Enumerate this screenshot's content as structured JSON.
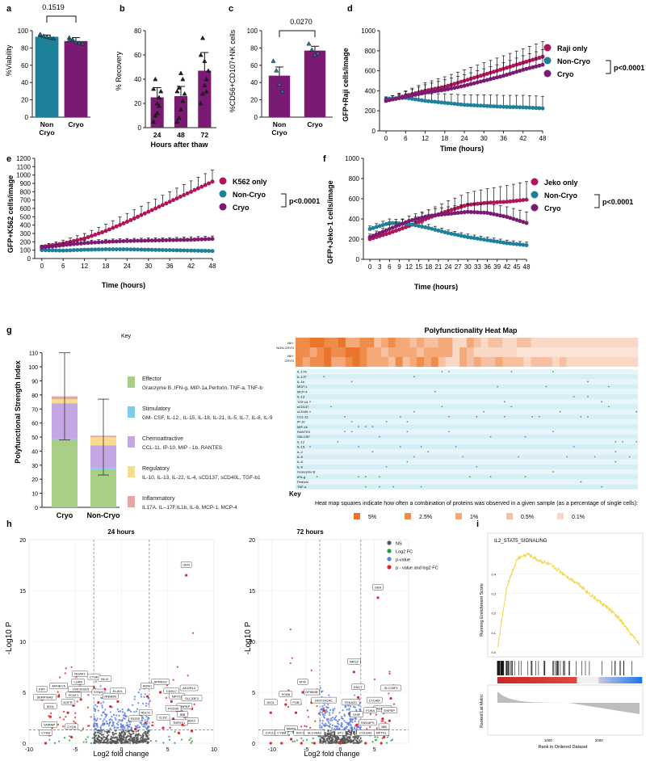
{
  "colors": {
    "teal": "#1f8199",
    "purple": "#7b1a72",
    "magenta": "#b0145a",
    "effector": "#a8cf85",
    "stimulatory": "#7fcde4",
    "chemo": "#c4a6e2",
    "regulatory": "#f6dc8f",
    "inflammatory": "#e8a7a7",
    "heat1": "#e9742a",
    "heat2": "#f08c4a",
    "heat3": "#f5a878",
    "heat4": "#f7c0a0",
    "heat5": "#fad8c6",
    "ns": "#555555",
    "logfc": "#2b9a3c",
    "pval": "#5b7be8",
    "both": "#e0262a",
    "gsea": "#f3d547"
  },
  "panels": {
    "a": "a",
    "b": "b",
    "c": "c",
    "d": "d",
    "e": "e",
    "f": "f",
    "g": "g",
    "h": "h",
    "i": "i"
  },
  "chart_data": [
    {
      "id": "a",
      "type": "bar",
      "ylabel": "%Viability",
      "ylim": [
        0,
        100
      ],
      "yticks": [
        "0",
        "20",
        "40",
        "60",
        "80",
        "100"
      ],
      "categories": [
        "Non Cryo",
        "Cryo"
      ],
      "category_lines": [
        [
          "Non",
          "Cryo"
        ],
        [
          "Cryo"
        ]
      ],
      "values": [
        93,
        88
      ],
      "errors": [
        2,
        4
      ],
      "points": [
        [
          95,
          94,
          93,
          92,
          91,
          96
        ],
        [
          92,
          90,
          87,
          86,
          85,
          89
        ]
      ],
      "pvalue": "0.1519"
    },
    {
      "id": "b",
      "type": "bar",
      "ylabel": "% Recovery",
      "xlabel": "Hours after thaw",
      "ylim": [
        0,
        80
      ],
      "yticks": [
        "0",
        "20",
        "40",
        "60",
        "80"
      ],
      "categories": [
        "24",
        "48",
        "72"
      ],
      "values": [
        25,
        26,
        47
      ],
      "errors": [
        8,
        8,
        15
      ],
      "points": [
        [
          5,
          10,
          20,
          25,
          30,
          32,
          40,
          12,
          18
        ],
        [
          5,
          8,
          15,
          22,
          28,
          30,
          33,
          45,
          40
        ],
        [
          20,
          28,
          35,
          40,
          47,
          60,
          74,
          55,
          30
        ]
      ]
    },
    {
      "id": "c",
      "type": "bar",
      "ylabel": "%CD56+CD107+NK cells",
      "ylim": [
        0,
        100
      ],
      "yticks": [
        "0",
        "20",
        "40",
        "60",
        "80",
        "100"
      ],
      "categories": [
        "Non Cryo",
        "Cryo"
      ],
      "category_lines": [
        [
          "Non",
          "Cryo"
        ],
        [
          "Cryo"
        ]
      ],
      "values": [
        48,
        77
      ],
      "errors": [
        10,
        5
      ],
      "points": [
        [
          65,
          54,
          38,
          30
        ],
        [
          85,
          78,
          72,
          74
        ]
      ],
      "pvalue": "0.0270"
    },
    {
      "id": "d",
      "type": "line",
      "ylabel": "GFP+Raji cells/image",
      "xlabel": "Time (hours)",
      "ylim": [
        0,
        1000
      ],
      "xlim": [
        -2,
        48
      ],
      "yticks": [
        "0",
        "200",
        "400",
        "600",
        "800",
        "1000"
      ],
      "xticks": [
        "0",
        "6",
        "12",
        "18",
        "24",
        "30",
        "36",
        "42",
        "48"
      ],
      "series": [
        {
          "name": "Raji only",
          "x": [
            0,
            6,
            12,
            18,
            24,
            30,
            36,
            42,
            48
          ],
          "values": [
            300,
            350,
            400,
            440,
            500,
            560,
            620,
            680,
            740
          ],
          "error": [
            30,
            50,
            80,
            100,
            110,
            120,
            130,
            140,
            150
          ]
        },
        {
          "name": "Non-Cryo",
          "x": [
            0,
            6,
            12,
            18,
            24,
            30,
            36,
            42,
            48
          ],
          "values": [
            320,
            330,
            300,
            280,
            260,
            250,
            240,
            235,
            225
          ],
          "error": [
            20,
            40,
            70,
            90,
            100,
            110,
            115,
            120,
            120
          ]
        },
        {
          "name": "Cryo",
          "x": [
            0,
            6,
            12,
            18,
            24,
            30,
            36,
            42,
            48
          ],
          "values": [
            300,
            340,
            380,
            410,
            450,
            500,
            550,
            610,
            660
          ],
          "error": [
            30,
            50,
            80,
            100,
            110,
            120,
            130,
            140,
            150
          ]
        }
      ],
      "pvalue": "p<0.0001"
    },
    {
      "id": "e",
      "type": "line",
      "ylabel": "GFP+K562 cells/image",
      "xlabel": "Time (hours)",
      "ylim": [
        0,
        1200
      ],
      "xlim": [
        -2,
        48
      ],
      "yticks": [
        "0",
        "100",
        "200",
        "300",
        "400",
        "500",
        "600",
        "700",
        "800",
        "900",
        "1000",
        "1100",
        "1200"
      ],
      "xticks": [
        "0",
        "6",
        "12",
        "18",
        "24",
        "30",
        "36",
        "42",
        "48"
      ],
      "series": [
        {
          "name": "K562 only",
          "x": [
            0,
            6,
            12,
            18,
            24,
            30,
            36,
            42,
            48
          ],
          "values": [
            140,
            180,
            240,
            330,
            440,
            560,
            680,
            800,
            920
          ],
          "error": [
            20,
            40,
            60,
            80,
            100,
            110,
            120,
            130,
            140
          ]
        },
        {
          "name": "Non-Cryo",
          "x": [
            0,
            6,
            12,
            18,
            24,
            30,
            36,
            42,
            48
          ],
          "values": [
            100,
            95,
            105,
            110,
            110,
            105,
            100,
            95,
            90
          ],
          "error": [
            10,
            10,
            15,
            15,
            15,
            15,
            15,
            15,
            15
          ]
        },
        {
          "name": "Cryo",
          "x": [
            0,
            6,
            12,
            18,
            24,
            30,
            36,
            42,
            48
          ],
          "values": [
            130,
            160,
            185,
            200,
            210,
            215,
            220,
            225,
            235
          ],
          "error": [
            20,
            25,
            30,
            30,
            30,
            30,
            30,
            35,
            35
          ]
        }
      ],
      "pvalue": "p<0.0001"
    },
    {
      "id": "f",
      "type": "line",
      "ylabel": "GFP+Jeko-1 cells/image",
      "xlabel": "Time (hours)",
      "ylim": [
        0,
        1000
      ],
      "xlim": [
        -2,
        48
      ],
      "yticks": [
        "0",
        "200",
        "400",
        "600",
        "800",
        "1000"
      ],
      "xticks": [
        "0",
        "3",
        "6",
        "9",
        "12",
        "15",
        "18",
        "21",
        "24",
        "27",
        "30",
        "33",
        "36",
        "39",
        "42",
        "45",
        "48"
      ],
      "series": [
        {
          "name": "Jeko only",
          "x": [
            0,
            6,
            12,
            18,
            24,
            30,
            36,
            42,
            48
          ],
          "values": [
            200,
            260,
            330,
            410,
            480,
            540,
            560,
            570,
            590
          ],
          "error": [
            30,
            40,
            60,
            80,
            100,
            120,
            140,
            160,
            180
          ]
        },
        {
          "name": "Non-Cryo",
          "x": [
            0,
            6,
            12,
            18,
            24,
            30,
            36,
            42,
            48
          ],
          "values": [
            300,
            360,
            350,
            310,
            260,
            220,
            190,
            160,
            140
          ],
          "error": [
            30,
            40,
            40,
            35,
            30,
            30,
            30,
            30,
            30
          ]
        },
        {
          "name": "Cryo",
          "x": [
            0,
            6,
            12,
            18,
            24,
            30,
            36,
            42,
            48
          ],
          "values": [
            220,
            300,
            380,
            430,
            450,
            470,
            460,
            420,
            360
          ],
          "error": [
            30,
            40,
            50,
            60,
            70,
            80,
            90,
            100,
            110
          ]
        }
      ],
      "pvalue": "p<0.0001"
    },
    {
      "id": "g",
      "type": "bar",
      "ylabel": "Polyfunctional Strength Index",
      "ylim": [
        0,
        110
      ],
      "yticks": [
        "0",
        "10",
        "20",
        "30",
        "40",
        "50",
        "60",
        "70",
        "80",
        "90",
        "100",
        "110"
      ],
      "categories": [
        "Cryo",
        "Non-Cryo"
      ],
      "series": [
        {
          "name": "Effector",
          "values": [
            48,
            27
          ]
        },
        {
          "name": "Stimulatory",
          "values": [
            1,
            1
          ]
        },
        {
          "name": "Chemoattractive",
          "values": [
            25,
            16
          ]
        },
        {
          "name": "Regulatory",
          "values": [
            3,
            6
          ]
        },
        {
          "name": "Inflammatory",
          "values": [
            2,
            1
          ]
        }
      ],
      "errors_high": [
        110,
        77
      ],
      "errors_low": [
        48,
        23
      ]
    },
    {
      "id": "g-heatmap",
      "type": "heatmap",
      "title": "Polyfunctionality Heat Map",
      "row_labels": [
        "NK+\nNON-CRYO",
        "NK+\nCRYO"
      ],
      "row_labels_lines": [
        [
          "NK+",
          "NON-CRYO"
        ],
        [
          "NK+",
          "CRYO"
        ]
      ],
      "protein_labels": [
        "IL-17A",
        "IL-17F",
        "IL-1b",
        "MCP-1",
        "MCP-4",
        "IL-13",
        "TGF-b1",
        "sCD137",
        "sCD40L",
        "CCL-11",
        "IP-10",
        "MIP-1b",
        "RANTES",
        "GM-CSF",
        "IL-12",
        "IL-15",
        "IL-2",
        "IL-5",
        "IL-8",
        "IL-9",
        "Granzyme B",
        "IFN-g",
        "Perforin",
        "TNF-a"
      ],
      "scale": [
        "5%",
        "2.5%",
        "1%",
        "0.5%",
        "0.1%"
      ],
      "note": "Heat map squares indicate how often a combination of proteins was observed in a given sample (as a percentage of single cells):"
    },
    {
      "id": "h-24",
      "type": "scatter",
      "title": "24 hours",
      "xlabel": "Log2 fold change",
      "ylabel": "-Log10 P",
      "xlim": [
        -10,
        10
      ],
      "ylim": [
        0,
        20
      ],
      "xticks": [
        "-10",
        "-5",
        "0",
        "5",
        "10"
      ],
      "yticks": [
        "0",
        "5",
        "10",
        "15",
        "20"
      ],
      "genes": [
        [
          "GEN",
          7,
          16.5
        ],
        [
          "NUAK1",
          -4.5,
          5.8
        ],
        [
          "CTSF",
          -3.0,
          5.5
        ],
        [
          "MLXI",
          -1.8,
          5.3
        ],
        [
          "LGR6",
          -4.7,
          5.0
        ],
        [
          "ARHECA",
          -6.8,
          4.6
        ],
        [
          "LINC00315",
          -4.4,
          4.3
        ],
        [
          "SYNM",
          -2.5,
          4.0
        ],
        [
          "PCAT1",
          -5.2,
          3.7
        ],
        [
          "RNMDN",
          -1.2,
          3.6
        ],
        [
          "ELAVL",
          -0.4,
          4.1
        ],
        [
          "KRT",
          -8.6,
          4.3
        ],
        [
          "SERPINA3",
          -8.3,
          3.5
        ],
        [
          "EGFR",
          -5.8,
          3.0
        ],
        [
          "IDO1",
          -7.7,
          2.6
        ],
        [
          "SPRED2",
          4.2,
          5.0
        ],
        [
          "ADNC",
          2.8,
          4.6
        ],
        [
          "CDH17",
          5.4,
          4.1
        ],
        [
          "ADGRL2",
          7.3,
          4.4
        ],
        [
          "NPTX1",
          6.0,
          3.6
        ],
        [
          "SLC33F3",
          7.6,
          3.4
        ],
        [
          "ENPEP",
          6.8,
          2.6
        ],
        [
          "PCDS5",
          5.6,
          2.4
        ],
        [
          "RDCG",
          2.6,
          2.0
        ],
        [
          "CLDC",
          4.5,
          1.5
        ],
        [
          "SDCI",
          7.6,
          1.2
        ],
        [
          "TMF2Y1",
          6.2,
          1.0
        ],
        [
          "IBB",
          6.6,
          1.8
        ],
        [
          "SNRNP",
          -7.8,
          0.8
        ],
        [
          "CYOA",
          -5.4,
          0.6
        ],
        [
          "CYKB",
          -8.2,
          -0.2
        ],
        [
          "ROSS",
          1.5,
          1.4
        ]
      ]
    },
    {
      "id": "h-72",
      "type": "scatter",
      "title": "72 hours",
      "xlabel": "Log2 fold change",
      "ylabel": "-Log10 P",
      "xlim": [
        -12,
        10
      ],
      "ylim": [
        0,
        20
      ],
      "xticks": [
        "-10",
        "-5",
        "0",
        "5"
      ],
      "yticks": [
        "0",
        "5",
        "10",
        "15",
        "20"
      ],
      "legend": [
        "NS",
        "Log2 FC",
        "p-value",
        "p - value and log2 FC"
      ],
      "genes": [
        [
          "GEN",
          5.5,
          14.3
        ],
        [
          "NRCZ",
          2.0,
          7.0
        ],
        [
          "IDO1",
          -10.2,
          3.0
        ],
        [
          "MTE",
          -5.5,
          5.0
        ],
        [
          "DPMWB",
          -4.2,
          4.0
        ],
        [
          "ENCT",
          2.6,
          4.5
        ],
        [
          "FCB8",
          -8.0,
          3.8
        ],
        [
          "FOB",
          -6.5,
          3.0
        ],
        [
          "HIST2H2AC",
          -2.4,
          3.2
        ],
        [
          "TEKAZ0",
          1.5,
          3.0
        ],
        [
          "SHIF",
          2.4,
          1.8
        ],
        [
          "LYCAM",
          5.0,
          3.2
        ],
        [
          "SLC35F3",
          7.4,
          4.4
        ],
        [
          "ADRKL2",
          6.2,
          2.4
        ],
        [
          "ENPEP",
          7.2,
          2.2
        ],
        [
          "FOKA",
          4.4,
          2.2
        ],
        [
          "SNGAPS",
          4.0,
          1.0
        ],
        [
          "IBB",
          6.4,
          0.6
        ],
        [
          "NPTX1",
          6.0,
          -0.4
        ],
        [
          "COL6A3",
          3.7,
          -0.2
        ],
        [
          "CXCL9",
          -10.2,
          -0.4
        ],
        [
          "CYBB",
          -8.6,
          -0.4
        ],
        [
          "MMP9",
          -7.2,
          0.4
        ],
        [
          "SOCS3",
          -5.7,
          -0.2
        ],
        [
          "SLC46A3",
          -3.8,
          -0.4
        ],
        [
          "SP1",
          0.0,
          -0.8
        ]
      ]
    },
    {
      "id": "i",
      "type": "line",
      "title": "IL2_STAT5_SIGNALING",
      "ylabel": "Running Enrichment Score",
      "xlabel": "Rank in Ordered Dataset",
      "ylabel_bottom": "Ranked List Metric",
      "ylim": [
        0,
        0.5
      ],
      "yticks": [
        "0.0",
        "0.1",
        "0.2",
        "0.3",
        "0.4"
      ],
      "xticks": [
        "1000",
        "2000"
      ],
      "x": [
        0,
        200,
        400,
        600,
        800,
        1000,
        1200,
        1400,
        1600,
        1800,
        2000,
        2200,
        2400,
        2600,
        2800
      ],
      "values": [
        0.02,
        0.35,
        0.48,
        0.5,
        0.47,
        0.45,
        0.42,
        0.38,
        0.35,
        0.3,
        0.26,
        0.22,
        0.17,
        0.1,
        0.04
      ]
    }
  ]
}
